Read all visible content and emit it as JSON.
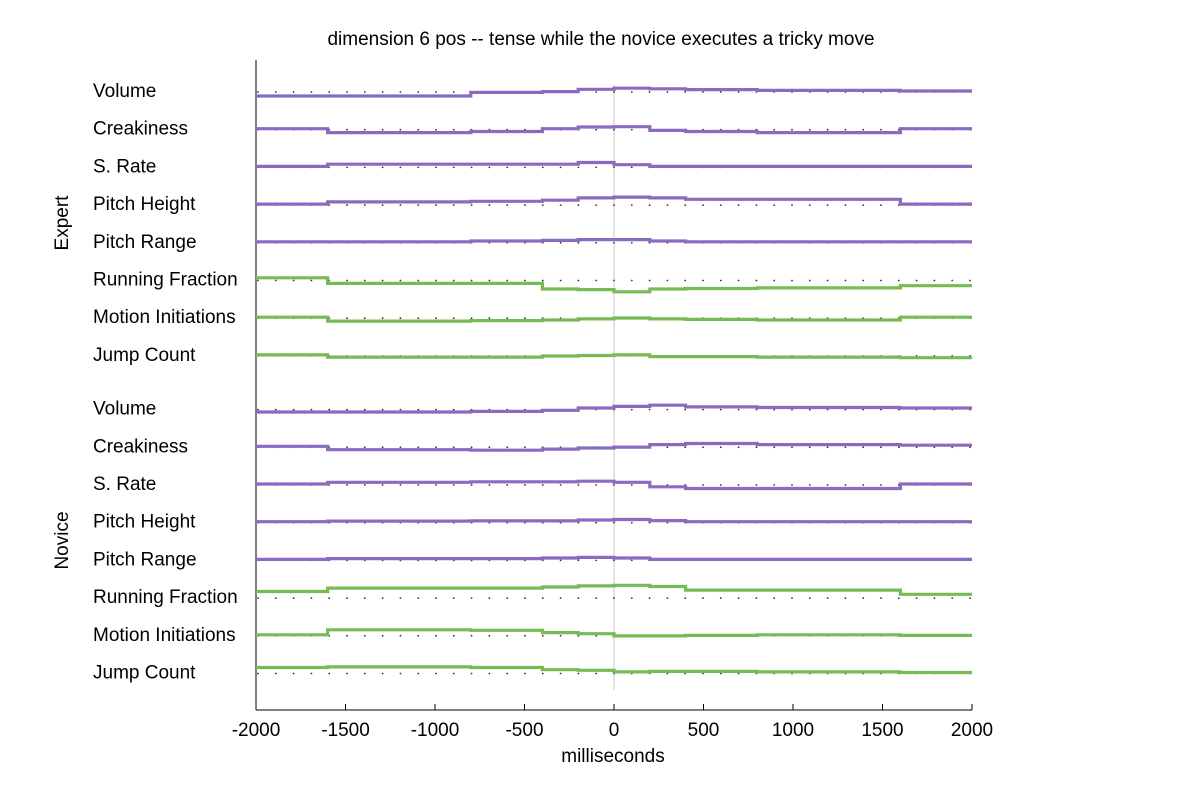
{
  "chart_data": {
    "type": "line",
    "title": "dimension 6 pos -- tense while the novice executes a tricky move",
    "xlabel": "milliseconds",
    "xlim": [
      -2000,
      2000
    ],
    "x_ticks": [
      -2000,
      -1500,
      -1000,
      -500,
      0,
      500,
      1000,
      1500,
      2000
    ],
    "x_tick_labels": [
      "-2000",
      "-1500",
      "-1000",
      "-500",
      "0",
      "500",
      "1000",
      "1500",
      "2000"
    ],
    "zero_line": true,
    "baseline_dots": true,
    "bin_edges": [
      -2000,
      -1600,
      -800,
      -400,
      -200,
      0,
      200,
      400,
      800,
      1600,
      2000
    ],
    "colors": {
      "prosody": "#8a6bbf",
      "motion": "#77bb55"
    },
    "groups": [
      {
        "name": "Expert",
        "rows": [
          {
            "label": "Volume",
            "kind": "prosody",
            "values": [
              -0.18,
              -0.18,
              -0.05,
              -0.02,
              0.06,
              0.1,
              0.08,
              0.05,
              0.02,
              0.0
            ]
          },
          {
            "label": "Creakiness",
            "kind": "prosody",
            "values": [
              0.0,
              -0.14,
              -0.1,
              0.0,
              0.06,
              0.07,
              -0.06,
              -0.1,
              -0.14,
              0.0
            ]
          },
          {
            "label": "S. Rate",
            "kind": "prosody",
            "values": [
              0.0,
              0.08,
              0.08,
              0.08,
              0.14,
              0.06,
              0.0,
              0.0,
              0.0,
              0.0
            ]
          },
          {
            "label": "Pitch Height",
            "kind": "prosody",
            "values": [
              0.0,
              0.08,
              0.1,
              0.14,
              0.22,
              0.25,
              0.22,
              0.17,
              0.17,
              0.0
            ]
          },
          {
            "label": "Pitch Range",
            "kind": "prosody",
            "values": [
              0.0,
              0.0,
              0.03,
              0.05,
              0.08,
              0.08,
              0.03,
              0.0,
              0.0,
              0.0
            ]
          },
          {
            "label": "Running Fraction",
            "kind": "motion",
            "values": [
              0.06,
              -0.14,
              -0.14,
              -0.34,
              -0.36,
              -0.44,
              -0.34,
              -0.32,
              -0.3,
              -0.22
            ]
          },
          {
            "label": "Motion Initiations",
            "kind": "motion",
            "values": [
              0.0,
              -0.14,
              -0.12,
              -0.1,
              -0.06,
              -0.03,
              -0.06,
              -0.08,
              -0.1,
              0.0
            ]
          },
          {
            "label": "Jump Count",
            "kind": "motion",
            "values": [
              0.0,
              -0.08,
              -0.08,
              -0.04,
              -0.02,
              0.0,
              -0.06,
              -0.06,
              -0.08,
              -0.1
            ]
          }
        ]
      },
      {
        "name": "Novice",
        "rows": [
          {
            "label": "Volume",
            "kind": "prosody",
            "values": [
              -0.12,
              -0.12,
              -0.1,
              -0.06,
              0.02,
              0.08,
              0.12,
              0.06,
              0.04,
              0.02
            ]
          },
          {
            "label": "Creakiness",
            "kind": "prosody",
            "values": [
              0.0,
              -0.12,
              -0.14,
              -0.1,
              -0.06,
              -0.03,
              0.06,
              0.1,
              0.06,
              0.04
            ]
          },
          {
            "label": "S. Rate",
            "kind": "prosody",
            "values": [
              0.0,
              0.06,
              0.08,
              0.08,
              0.1,
              0.06,
              -0.1,
              -0.16,
              -0.16,
              0.0
            ]
          },
          {
            "label": "Pitch Height",
            "kind": "prosody",
            "values": [
              0.0,
              0.02,
              0.03,
              0.03,
              0.06,
              0.08,
              0.04,
              0.0,
              0.0,
              0.0
            ]
          },
          {
            "label": "Pitch Range",
            "kind": "prosody",
            "values": [
              0.0,
              0.03,
              0.03,
              0.05,
              0.07,
              0.05,
              0.0,
              0.0,
              0.0,
              0.0
            ]
          },
          {
            "label": "Running Fraction",
            "kind": "motion",
            "values": [
              0.2,
              0.32,
              0.32,
              0.36,
              0.4,
              0.42,
              0.38,
              0.25,
              0.25,
              0.1
            ]
          },
          {
            "label": "Motion Initiations",
            "kind": "motion",
            "values": [
              0.0,
              0.18,
              0.16,
              0.08,
              0.04,
              -0.04,
              -0.04,
              -0.02,
              0.0,
              -0.02
            ]
          },
          {
            "label": "Jump Count",
            "kind": "motion",
            "values": [
              0.18,
              0.2,
              0.18,
              0.1,
              0.08,
              0.02,
              0.04,
              0.04,
              0.02,
              0.0
            ]
          }
        ]
      }
    ]
  }
}
